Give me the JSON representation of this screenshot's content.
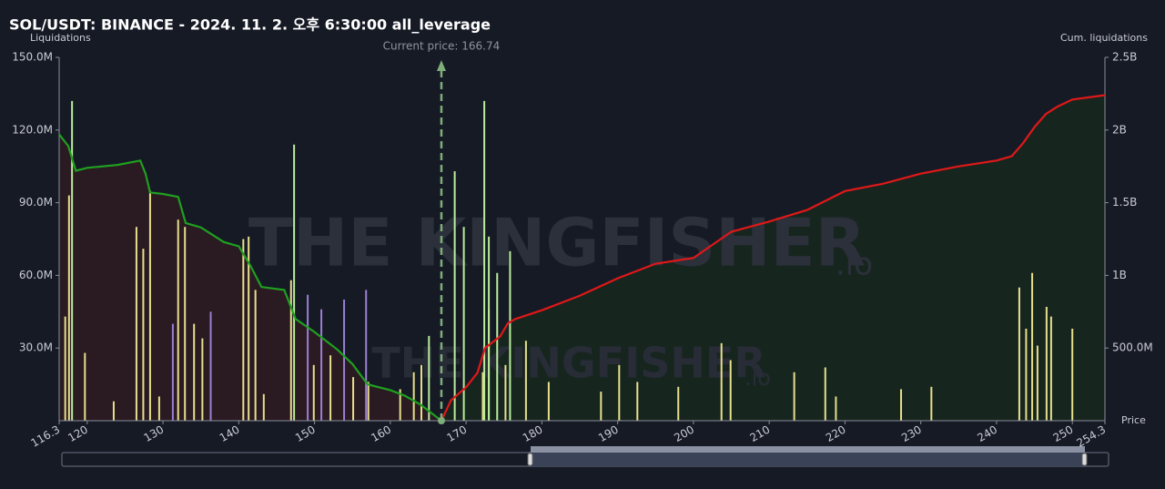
{
  "chart_data": {
    "type": "bar",
    "title": "SOL/USDT: BINANCE - 2024. 11. 2. 오후 6:30:00 all_leverage",
    "ylabel": "Liquidations",
    "y2label": "Cum. liquidations",
    "xlabel": "Price",
    "watermark": "THE KINGFISHER",
    "watermark_suffix": ".io",
    "xlim": [
      116.3,
      254.3
    ],
    "xticks": [
      120,
      130,
      140,
      150,
      160,
      170,
      180,
      190,
      200,
      210,
      220,
      230,
      240,
      250
    ],
    "ylim": [
      0,
      150
    ],
    "yticks": [
      {
        "value": 30,
        "label": "30.0M"
      },
      {
        "value": 60,
        "label": "60.0M"
      },
      {
        "value": 90,
        "label": "90.0M"
      },
      {
        "value": 120,
        "label": "120.0M"
      },
      {
        "value": 150,
        "label": "150.0M"
      }
    ],
    "y2lim": [
      0,
      2.5
    ],
    "y2ticks": [
      {
        "value": 0.5,
        "label": "500.0M"
      },
      {
        "value": 1,
        "label": "1B"
      },
      {
        "value": 1.5,
        "label": "1.5B"
      },
      {
        "value": 2,
        "label": "2B"
      },
      {
        "value": 2.5,
        "label": "2.5B"
      }
    ],
    "annotation": {
      "value": 166.74,
      "label": "Current price: 166.74",
      "color": "#7fae7a"
    },
    "series": [
      {
        "type": "bar",
        "color": "#e6df8c",
        "x": [
          117.1,
          117.6,
          119.7,
          123.5,
          126.5,
          127.4,
          128.3,
          129.5,
          132.0,
          132.9,
          134.1,
          135.2,
          140.6,
          141.3,
          142.2,
          143.3,
          146.9,
          149.9,
          152.1,
          155.1,
          157.1,
          161.3,
          163.1,
          164.1,
          172.2,
          173.0,
          175.2,
          177.9,
          180.9,
          187.8,
          190.2,
          192.6,
          198.0,
          203.7,
          204.9,
          213.3,
          217.4,
          218.8,
          227.4,
          231.4,
          243.0,
          243.9,
          244.7,
          245.4,
          246.6,
          247.2,
          250.0
        ],
        "values": [
          43,
          93,
          28,
          8,
          80,
          71,
          95,
          10,
          83,
          80,
          40,
          34,
          75,
          76,
          54,
          11,
          58,
          23,
          27,
          18,
          16,
          13,
          20,
          23,
          20,
          46,
          23,
          33,
          16,
          12,
          23,
          16,
          14,
          32,
          25,
          20,
          22,
          10,
          13,
          14,
          55,
          38,
          61,
          31,
          47,
          43,
          38
        ]
      },
      {
        "type": "bar",
        "color": "#b9ec9c",
        "x": [
          118.0,
          147.3,
          165.1,
          168.5,
          169.7,
          172.4,
          173.0,
          174.1,
          175.8
        ],
        "values": [
          132,
          114,
          35,
          103,
          80,
          132,
          76,
          61,
          70
        ]
      },
      {
        "type": "bar",
        "color": "#9b7fd4",
        "x": [
          131.3,
          136.3,
          149.1,
          150.9,
          153.9,
          156.8
        ],
        "values": [
          40,
          45,
          52,
          46,
          50,
          54
        ]
      },
      {
        "type": "line",
        "axis": "y2",
        "color": "#1fa01f",
        "fill": "#2a1a22",
        "x": [
          116.3,
          117.5,
          118.5,
          120,
          124,
          127,
          127.7,
          128.3,
          130,
          132,
          133,
          135,
          138,
          140,
          141.5,
          143,
          146,
          147.5,
          150,
          153,
          155,
          157,
          160,
          162,
          164,
          166.74
        ],
        "values": [
          1.97,
          1.89,
          1.72,
          1.74,
          1.76,
          1.79,
          1.7,
          1.57,
          1.56,
          1.54,
          1.36,
          1.33,
          1.23,
          1.2,
          1.07,
          0.92,
          0.9,
          0.7,
          0.61,
          0.49,
          0.39,
          0.25,
          0.21,
          0.17,
          0.11,
          0
        ]
      },
      {
        "type": "line",
        "axis": "y2",
        "color": "#e01818",
        "fill": "#17251f",
        "x": [
          166.74,
          168,
          170,
          171.5,
          172.5,
          174.5,
          175.5,
          176.5,
          180,
          185,
          190,
          195,
          200,
          205,
          210,
          215,
          220,
          225,
          230,
          235,
          240,
          242,
          243.5,
          245,
          246.5,
          248,
          250,
          254.3
        ],
        "values": [
          0,
          0.14,
          0.23,
          0.33,
          0.5,
          0.58,
          0.67,
          0.7,
          0.76,
          0.86,
          0.98,
          1.08,
          1.12,
          1.3,
          1.37,
          1.45,
          1.58,
          1.63,
          1.7,
          1.75,
          1.79,
          1.82,
          1.91,
          2.02,
          2.11,
          2.16,
          2.21,
          2.24
        ]
      }
    ]
  }
}
